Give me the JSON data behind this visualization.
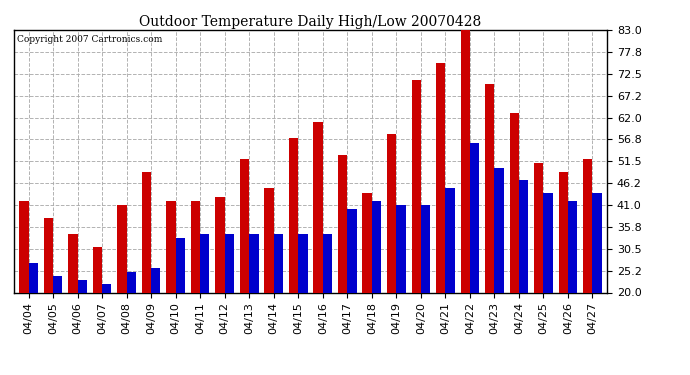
{
  "title": "Outdoor Temperature Daily High/Low 20070428",
  "copyright": "Copyright 2007 Cartronics.com",
  "dates": [
    "04/04",
    "04/05",
    "04/06",
    "04/07",
    "04/08",
    "04/09",
    "04/10",
    "04/11",
    "04/12",
    "04/13",
    "04/14",
    "04/15",
    "04/16",
    "04/17",
    "04/18",
    "04/19",
    "04/20",
    "04/21",
    "04/22",
    "04/23",
    "04/24",
    "04/25",
    "04/26",
    "04/27"
  ],
  "highs": [
    42.0,
    38.0,
    34.0,
    31.0,
    41.0,
    49.0,
    42.0,
    42.0,
    43.0,
    52.0,
    45.0,
    57.0,
    61.0,
    53.0,
    44.0,
    58.0,
    71.0,
    75.0,
    84.0,
    70.0,
    63.0,
    51.0,
    49.0,
    52.0
  ],
  "lows": [
    27.0,
    24.0,
    23.0,
    22.0,
    25.0,
    26.0,
    33.0,
    34.0,
    34.0,
    34.0,
    34.0,
    34.0,
    34.0,
    40.0,
    42.0,
    41.0,
    41.0,
    45.0,
    56.0,
    50.0,
    47.0,
    44.0,
    42.0,
    44.0
  ],
  "high_color": "#cc0000",
  "low_color": "#0000cc",
  "bg_color": "#ffffff",
  "plot_bg": "#ffffff",
  "grid_color": "#aaaaaa",
  "yticks": [
    20.0,
    25.2,
    30.5,
    35.8,
    41.0,
    46.2,
    51.5,
    56.8,
    62.0,
    67.2,
    72.5,
    77.8,
    83.0
  ],
  "ylim": [
    20.0,
    83.0
  ],
  "bar_width": 0.38
}
